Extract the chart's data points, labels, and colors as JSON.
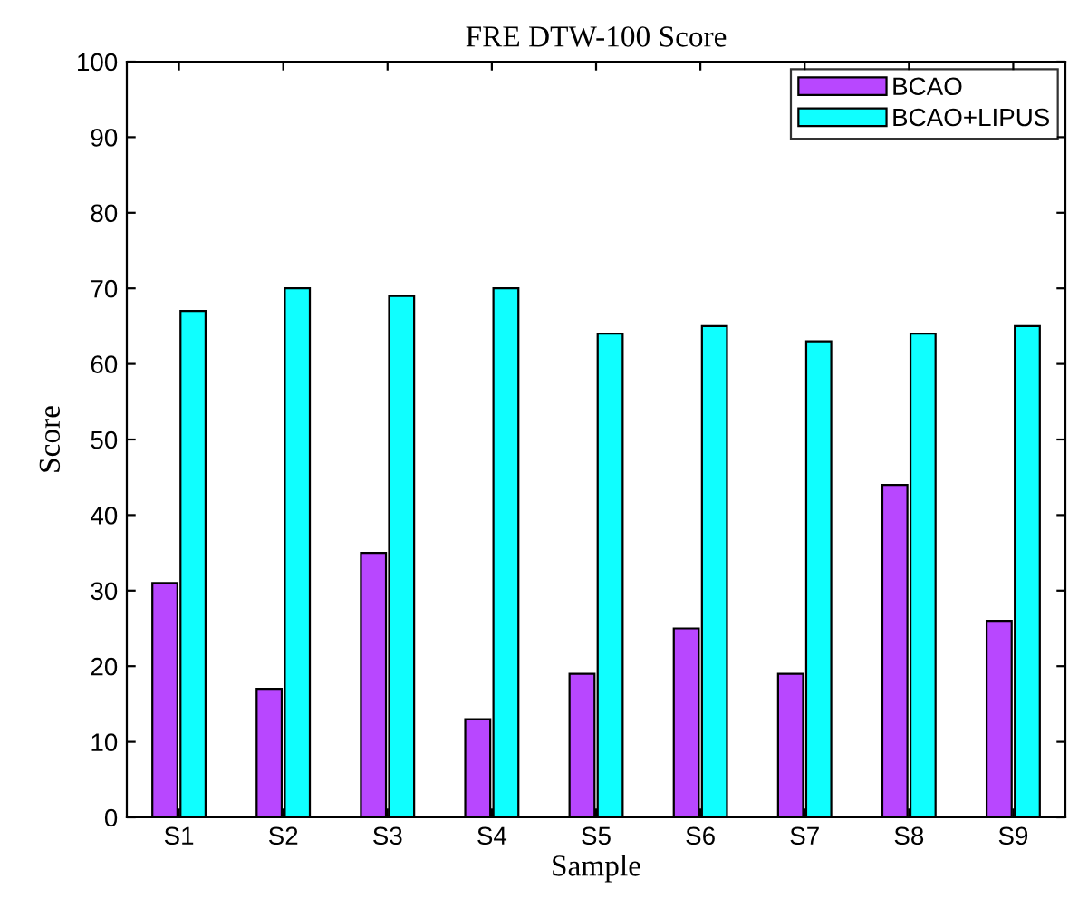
{
  "chart_data": {
    "type": "bar",
    "title": "FRE DTW-100 Score",
    "xlabel": "Sample",
    "ylabel": "Score",
    "categories": [
      "S1",
      "S2",
      "S3",
      "S4",
      "S5",
      "S6",
      "S7",
      "S8",
      "S9"
    ],
    "series": [
      {
        "name": "BCAO",
        "color": "#b847ff",
        "values": [
          31,
          17,
          35,
          13,
          19,
          25,
          19,
          44,
          26
        ]
      },
      {
        "name": "BCAO+LIPUS",
        "color": "#0fffff",
        "values": [
          67,
          70,
          69,
          70,
          64,
          65,
          63,
          64,
          65
        ]
      }
    ],
    "ylim": [
      0,
      100
    ],
    "yticks": [
      0,
      10,
      20,
      30,
      40,
      50,
      60,
      70,
      80,
      90,
      100
    ],
    "grid": false,
    "legend": "top right"
  }
}
